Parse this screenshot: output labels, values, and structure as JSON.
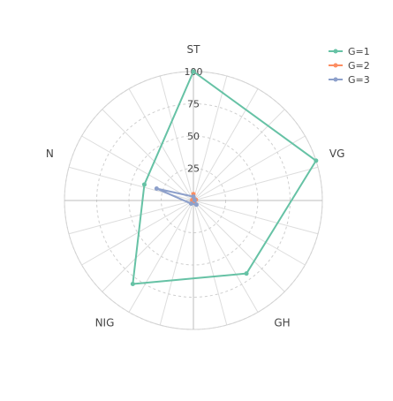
{
  "chart_data": {
    "type": "radar",
    "categories": [
      "ST",
      "VG",
      "GH",
      "NIG",
      "N"
    ],
    "radial_ticks": [
      "25",
      "50",
      "75",
      "100"
    ],
    "rlim": [
      0,
      100
    ],
    "grid": true,
    "legend_position": "top-right",
    "series": [
      {
        "name": "G=1",
        "color": "#66c2a5",
        "values": [
          100,
          100,
          70,
          80,
          40
        ]
      },
      {
        "name": "G=2",
        "color": "#fc8d62",
        "values": [
          5,
          2,
          1,
          1,
          1
        ]
      },
      {
        "name": "G=3",
        "color": "#8da0cb",
        "values": [
          3,
          1,
          4,
          3,
          30
        ]
      }
    ]
  }
}
